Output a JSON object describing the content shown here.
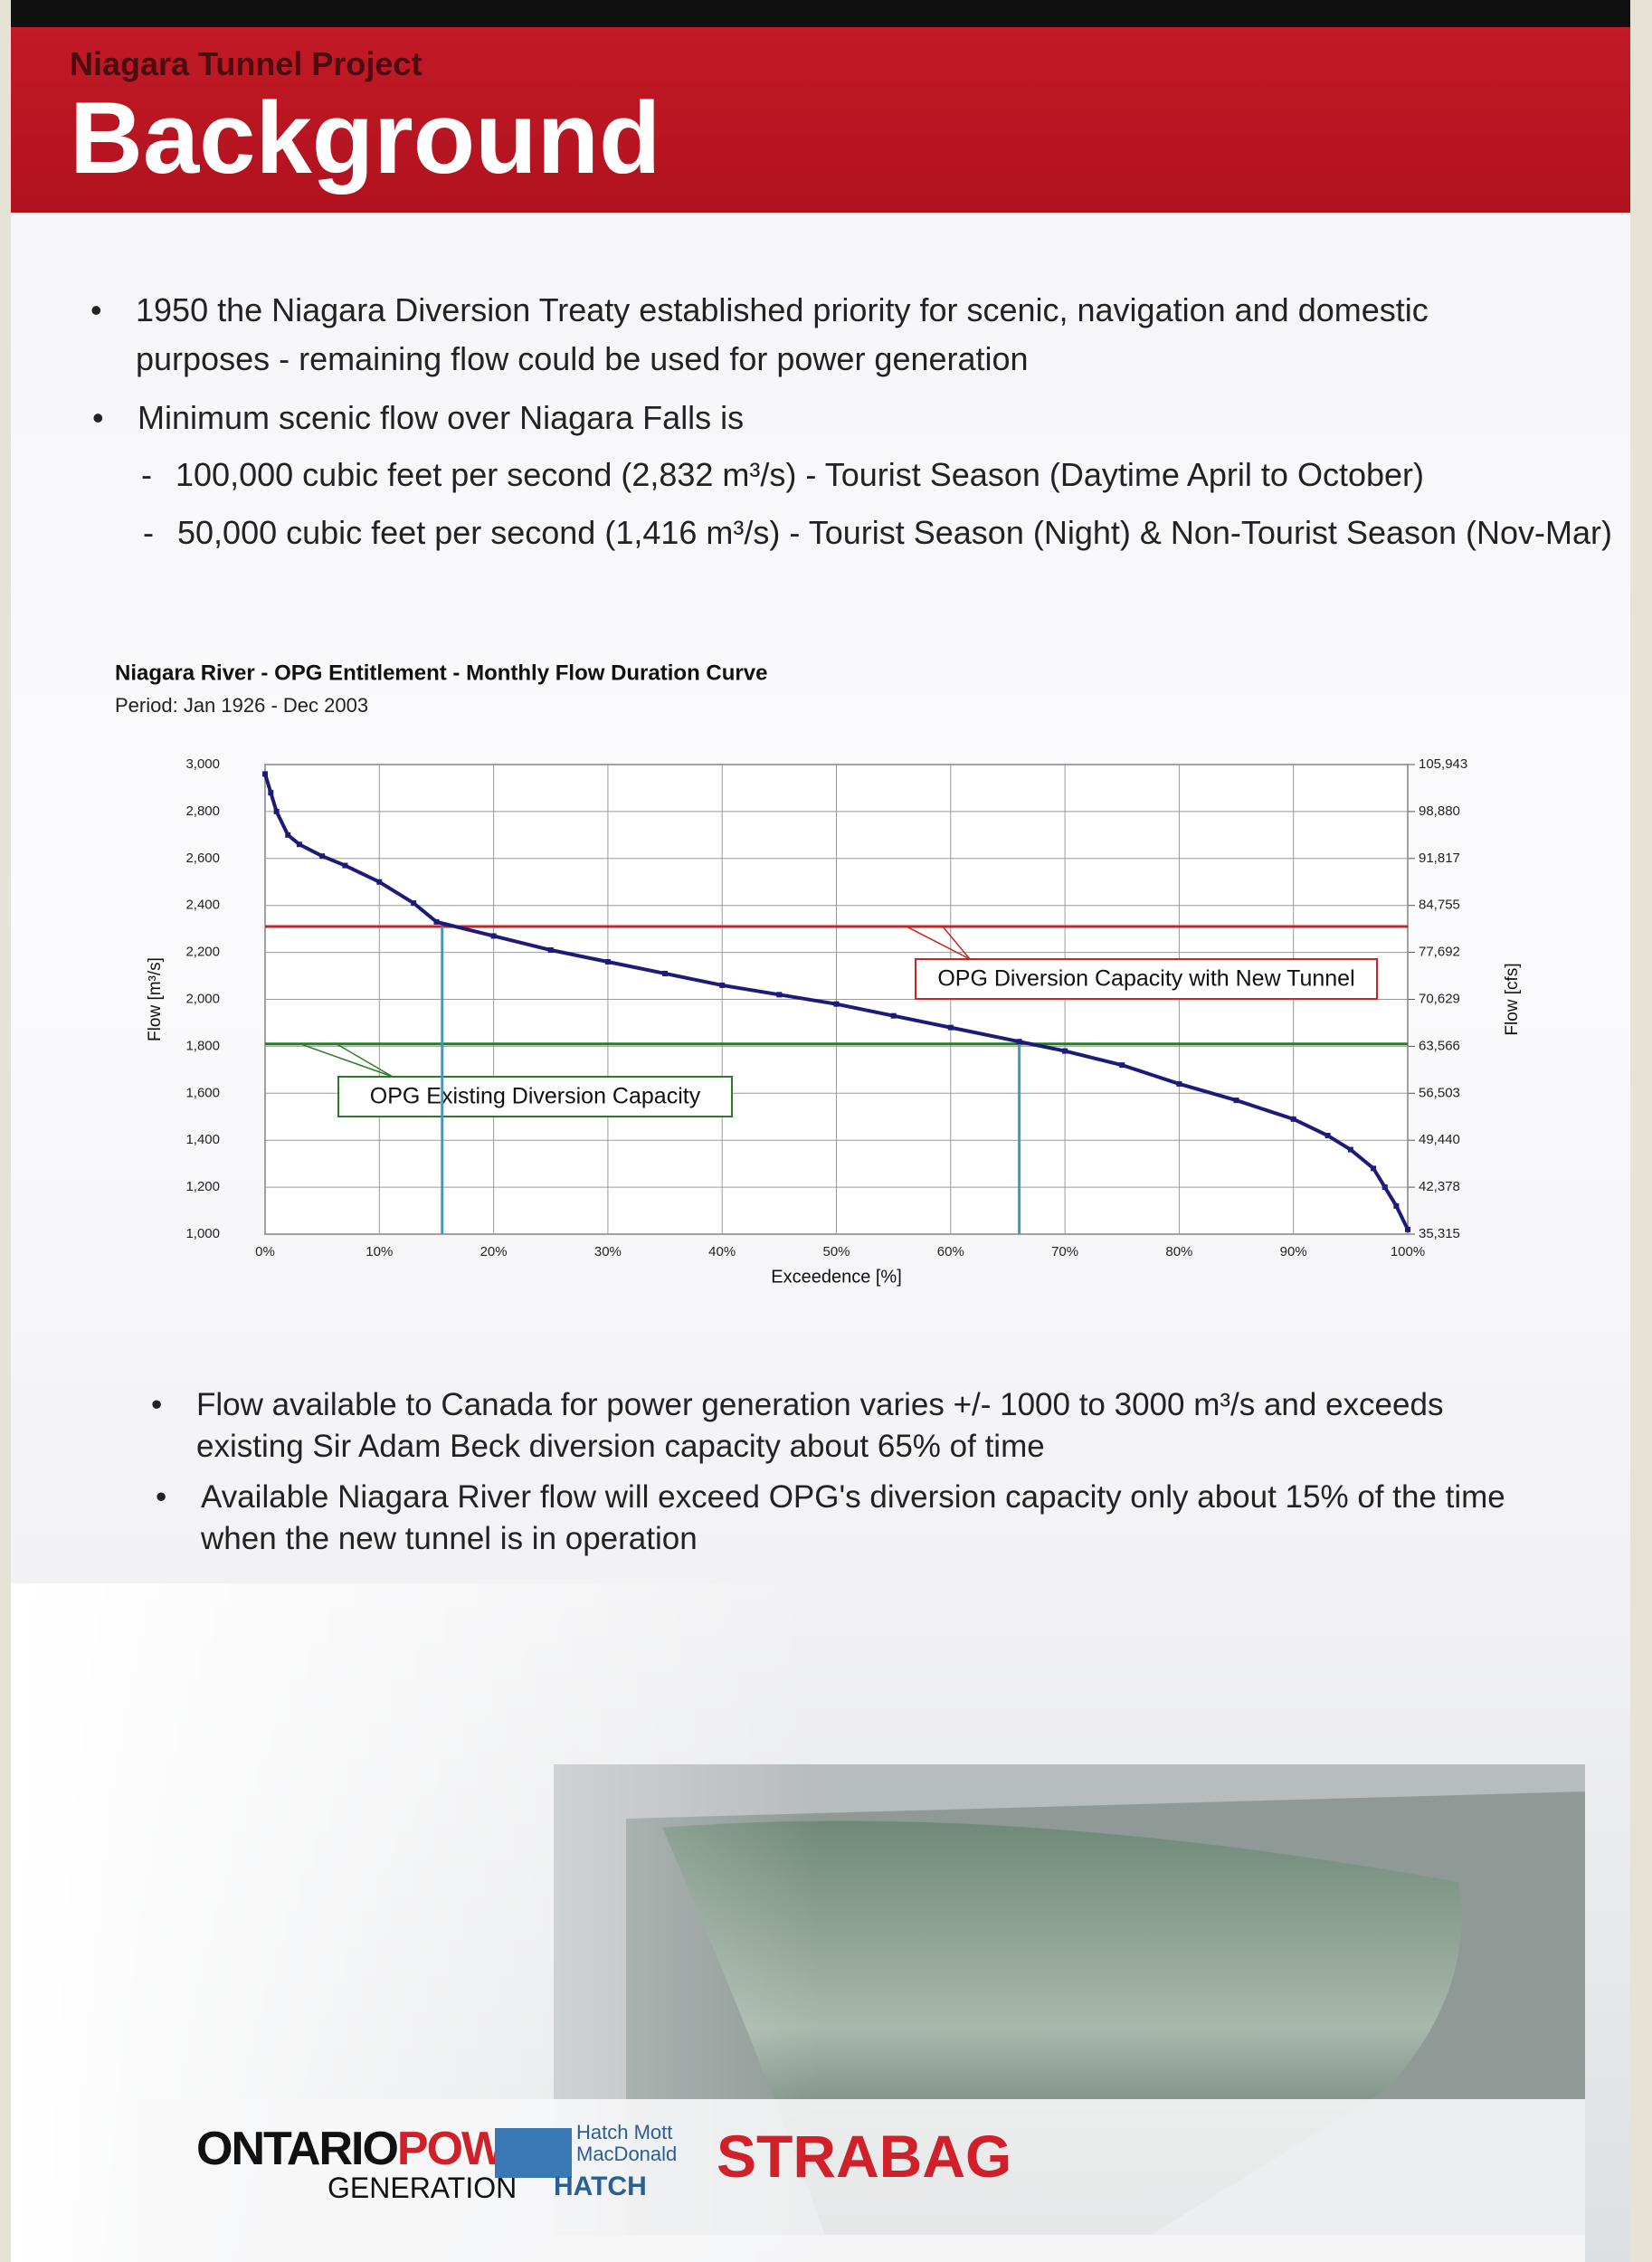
{
  "header": {
    "project": "Niagara Tunnel Project",
    "title": "Background"
  },
  "bullets": [
    "1950 the Niagara Diversion Treaty established priority for scenic, navigation and domestic purposes - remaining flow could be used for power generation",
    "Minimum scenic flow over Niagara Falls is"
  ],
  "sub_bullets": [
    "100,000 cubic feet per second (2,832 m³/s) - Tourist Season (Daytime April to October)",
    "50,000 cubic feet per second (1,416 m³/s) - Tourist Season (Night) & Non-Tourist Season (Nov-Mar)"
  ],
  "chart_data": {
    "type": "line",
    "title": "Niagara River - OPG Entitlement - Monthly Flow Duration Curve",
    "subtitle": "Period: Jan 1926 - Dec 2003",
    "x_label": "Exceedence [%]",
    "y_label": "Flow [m³/s]",
    "y2_label": "Flow [cfs]",
    "x": [
      0,
      0.5,
      1,
      2,
      3,
      5,
      7,
      10,
      13,
      15,
      20,
      25,
      30,
      35,
      40,
      45,
      50,
      55,
      60,
      66,
      70,
      75,
      80,
      85,
      90,
      93,
      95,
      97,
      98,
      99,
      100
    ],
    "series": [
      {
        "color": "#1c1c78",
        "values": [
          2960,
          2880,
          2800,
          2700,
          2660,
          2610,
          2570,
          2500,
          2410,
          2330,
          2270,
          2210,
          2160,
          2110,
          2060,
          2020,
          1980,
          1930,
          1880,
          1820,
          1780,
          1720,
          1640,
          1570,
          1490,
          1420,
          1360,
          1280,
          1200,
          1120,
          1020
        ]
      }
    ],
    "xlim": [
      0,
      100
    ],
    "xticks": [
      {
        "value": 0,
        "label": "0%"
      },
      {
        "value": 10,
        "label": "10%"
      },
      {
        "value": 20,
        "label": "20%"
      },
      {
        "value": 30,
        "label": "30%"
      },
      {
        "value": 40,
        "label": "40%"
      },
      {
        "value": 50,
        "label": "50%"
      },
      {
        "value": 60,
        "label": "60%"
      },
      {
        "value": 70,
        "label": "70%"
      },
      {
        "value": 80,
        "label": "80%"
      },
      {
        "value": 90,
        "label": "90%"
      },
      {
        "value": 100,
        "label": "100%"
      }
    ],
    "ylim": [
      1000,
      3000
    ],
    "yticks": [
      {
        "value": 1000,
        "label": "1,000"
      },
      {
        "value": 1200,
        "label": "1,200"
      },
      {
        "value": 1400,
        "label": "1,400"
      },
      {
        "value": 1600,
        "label": "1,600"
      },
      {
        "value": 1800,
        "label": "1,800"
      },
      {
        "value": 2000,
        "label": "2,000"
      },
      {
        "value": 2200,
        "label": "2,200"
      },
      {
        "value": 2400,
        "label": "2,400"
      },
      {
        "value": 2600,
        "label": "2,600"
      },
      {
        "value": 2800,
        "label": "2,800"
      },
      {
        "value": 3000,
        "label": "3,000"
      }
    ],
    "y2lim": [
      35315,
      105943
    ],
    "y2ticks": [
      {
        "value": 35315,
        "label": "35,315"
      },
      {
        "value": 42378,
        "label": "42,378"
      },
      {
        "value": 49440,
        "label": "49,440"
      },
      {
        "value": 56503,
        "label": "56,503"
      },
      {
        "value": 63566,
        "label": "63,566"
      },
      {
        "value": 70629,
        "label": "70,629"
      },
      {
        "value": 77692,
        "label": "77,692"
      },
      {
        "value": 84755,
        "label": "84,755"
      },
      {
        "value": 91817,
        "label": "91,817"
      },
      {
        "value": 98880,
        "label": "98,880"
      },
      {
        "value": 105943,
        "label": "105,943"
      }
    ],
    "grid": true,
    "reference_lines": [
      {
        "value": 2310,
        "color": "#cc2222",
        "label": "OPG Diversion Capacity with New Tunnel"
      },
      {
        "value": 1810,
        "color": "#2a7a2a",
        "label": "OPG Existing Diversion Capacity"
      }
    ],
    "drop_lines": [
      {
        "x": 15.5,
        "value": 2310,
        "color": "#3a9ad0"
      },
      {
        "x": 66,
        "value": 1810,
        "color": "#3a9ad0"
      }
    ]
  },
  "notes": [
    "Flow available to Canada for power generation varies +/- 1000 to 3000 m³/s and exceeds existing Sir Adam Beck diversion capacity about 65% of time",
    "Available Niagara River flow will exceed OPG's diversion capacity only about 15% of the time when the new tunnel is in operation"
  ],
  "logos": {
    "opg_a": "ONTARIO",
    "opg_b": "POWER",
    "opg_c": "GENERATION",
    "hatch_mott": "Hatch Mott MacDonald",
    "hatch": "HATCH",
    "strabag": "STRABAG"
  }
}
